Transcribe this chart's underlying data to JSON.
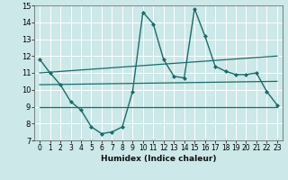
{
  "xlabel": "Humidex (Indice chaleur)",
  "bg_color": "#cce8e8",
  "grid_color": "#ffffff",
  "line_color": "#1a6b6b",
  "xlim": [
    -0.5,
    23.5
  ],
  "ylim": [
    7,
    15
  ],
  "xticks": [
    0,
    1,
    2,
    3,
    4,
    5,
    6,
    7,
    8,
    9,
    10,
    11,
    12,
    13,
    14,
    15,
    16,
    17,
    18,
    19,
    20,
    21,
    22,
    23
  ],
  "yticks": [
    7,
    8,
    9,
    10,
    11,
    12,
    13,
    14,
    15
  ],
  "main_line": {
    "x": [
      0,
      1,
      2,
      3,
      4,
      5,
      6,
      7,
      8,
      9,
      10,
      11,
      12,
      13,
      14,
      15,
      16,
      17,
      18,
      19,
      20,
      21,
      22,
      23
    ],
    "y": [
      11.8,
      11.0,
      10.3,
      9.3,
      8.8,
      7.8,
      7.4,
      7.5,
      7.8,
      9.9,
      14.6,
      13.9,
      11.8,
      10.8,
      10.7,
      14.8,
      13.2,
      11.4,
      11.1,
      10.9,
      10.9,
      11.0,
      9.9,
      9.1
    ]
  },
  "ref_lines": [
    {
      "x": [
        0,
        23
      ],
      "y": [
        11.0,
        12.0
      ]
    },
    {
      "x": [
        0,
        23
      ],
      "y": [
        10.3,
        10.5
      ]
    },
    {
      "x": [
        0,
        23
      ],
      "y": [
        9.0,
        9.0
      ]
    }
  ]
}
